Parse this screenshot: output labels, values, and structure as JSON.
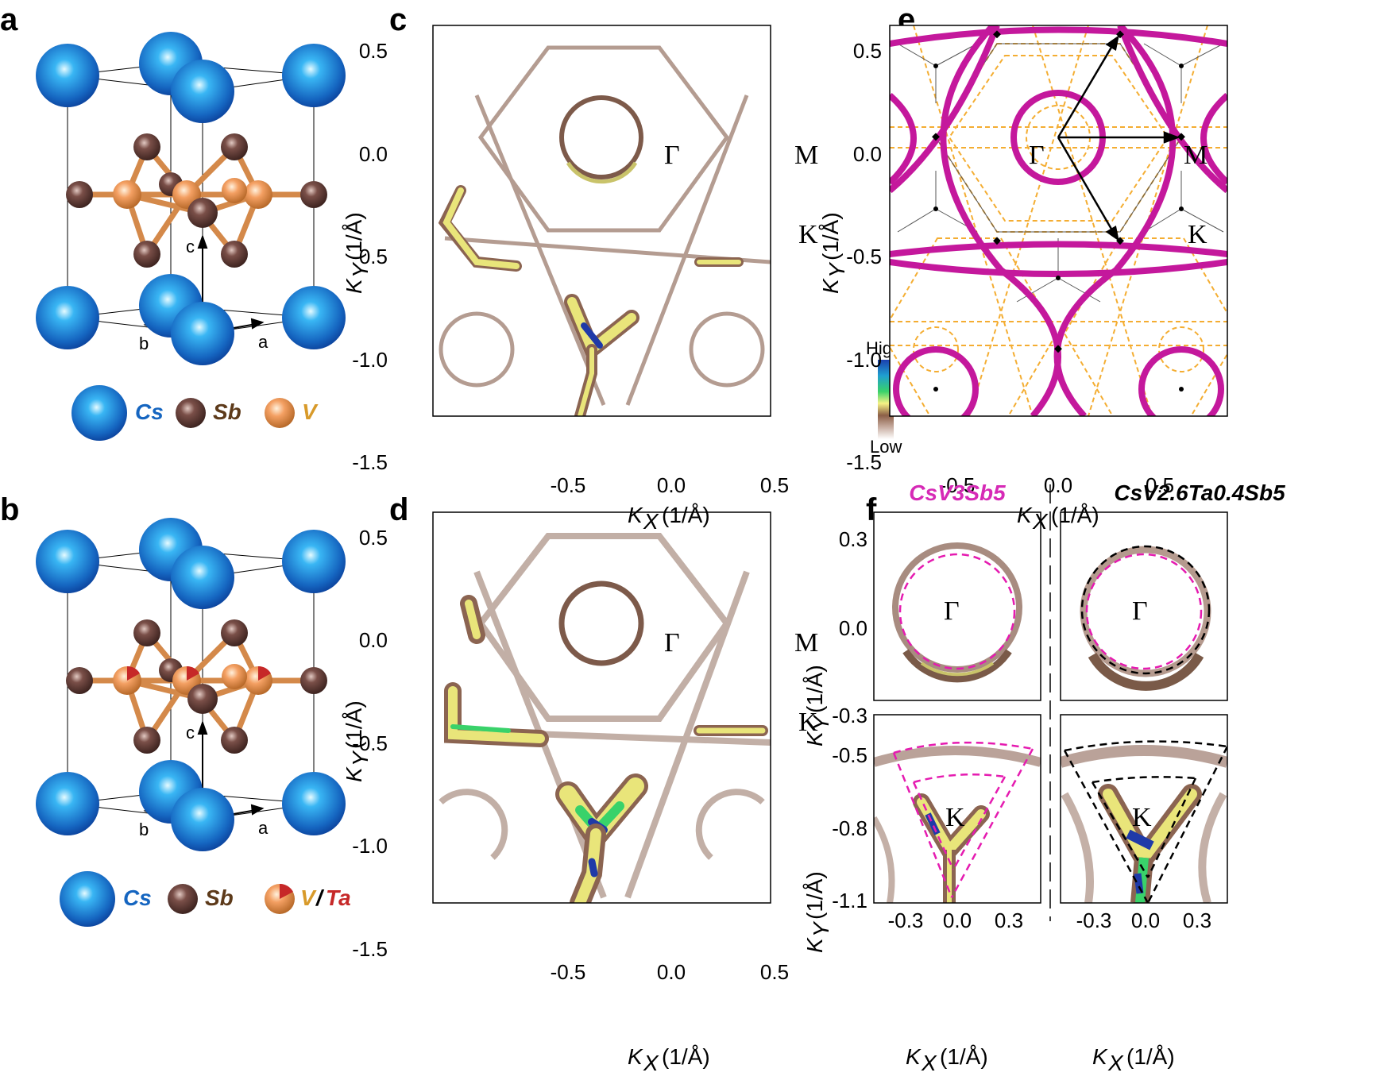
{
  "panels": {
    "a": {
      "label": "a",
      "legend": [
        {
          "text": "Cs",
          "color": "#1565c0"
        },
        {
          "text": "Sb",
          "color": "#5d3a1a"
        },
        {
          "text": "V",
          "color": "#d89a2a"
        }
      ],
      "axes": {
        "a": "a",
        "b": "b",
        "c": "c"
      }
    },
    "b": {
      "label": "b",
      "legend": [
        {
          "text": "Cs",
          "color": "#1565c0"
        },
        {
          "text": "Sb",
          "color": "#5d3a1a"
        },
        {
          "text": "V",
          "color": "#d89a2a"
        },
        {
          "text": "/",
          "color": "#000000"
        },
        {
          "text": "Ta",
          "color": "#c62828"
        }
      ],
      "axes": {
        "a": "a",
        "b": "b",
        "c": "c"
      }
    },
    "c": {
      "label": "c",
      "points": {
        "gamma": "Γ",
        "m": "M",
        "k": "K"
      },
      "colorbar": {
        "high": "High",
        "low": "Low"
      },
      "x_ticks": [
        "-0.5",
        "0.0",
        "0.5"
      ],
      "y_ticks": [
        "0.5",
        "0.0",
        "-0.5",
        "-1.0",
        "-1.5"
      ]
    },
    "d": {
      "label": "d",
      "points": {
        "gamma": "Γ",
        "m": "M",
        "k": "K"
      },
      "x_ticks": [
        "-0.5",
        "0.0",
        "0.5"
      ],
      "y_ticks": [
        "0.5",
        "0.0",
        "-0.5",
        "-1.0",
        "-1.5"
      ]
    },
    "e": {
      "label": "e",
      "points": {
        "gamma": "Γ",
        "m": "M",
        "k": "K"
      },
      "x_ticks": [
        "-0.5",
        "0.0",
        "0.5"
      ],
      "y_ticks": [
        "0.5",
        "0.0",
        "-0.5",
        "-1.0",
        "-1.5"
      ]
    },
    "f": {
      "label": "f",
      "title_left": "CsV3Sb5",
      "title_right": "CsV2.6Ta0.4Sb5",
      "points": {
        "gamma": "Γ",
        "k": "K"
      },
      "x_ticks": [
        "-0.3",
        "0.0",
        "0.3"
      ],
      "y_ticks_top": [
        "0.3",
        "0.0",
        "-0.3"
      ],
      "y_ticks_bottom": [
        "-0.5",
        "-0.8",
        "-1.1"
      ]
    }
  },
  "axis_labels": {
    "kx": "K",
    "kx_sub": "X",
    "ky": "K",
    "ky_sub": "Y",
    "unit": "(1/Å)"
  },
  "colors": {
    "cs": "#1e7fd6",
    "sb": "#6b4a47",
    "v": "#f0a060",
    "ta": "#c62828",
    "magenta": "#c4189c",
    "orange": "#f3a51c"
  }
}
